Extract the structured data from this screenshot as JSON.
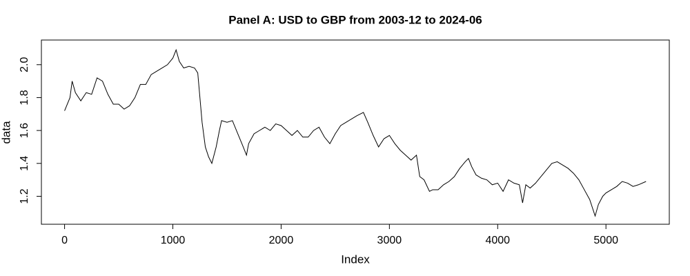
{
  "chart_data": {
    "type": "line",
    "title": "Panel A: USD to GBP from 2003-12 to 2024-06",
    "x_label": "Index",
    "y_label": "data",
    "xlim": [
      -214,
      5585
    ],
    "ylim": [
      1.03,
      2.15
    ],
    "xticks": [
      0,
      1000,
      2000,
      3000,
      4000,
      5000
    ],
    "yticks": [
      1.2,
      1.4,
      1.6,
      1.8,
      {
        "value": 2,
        "label": "2.0"
      }
    ],
    "series": [
      {
        "color": "#000000",
        "x": [
          0,
          50,
          70,
          100,
          150,
          200,
          250,
          300,
          350,
          400,
          450,
          500,
          550,
          600,
          650,
          700,
          750,
          800,
          850,
          900,
          950,
          1000,
          1030,
          1060,
          1100,
          1150,
          1200,
          1230,
          1250,
          1270,
          1300,
          1330,
          1360,
          1400,
          1430,
          1450,
          1500,
          1550,
          1600,
          1650,
          1680,
          1700,
          1750,
          1800,
          1850,
          1900,
          1950,
          2000,
          2050,
          2100,
          2150,
          2200,
          2250,
          2300,
          2350,
          2400,
          2450,
          2500,
          2550,
          2600,
          2650,
          2700,
          2760,
          2800,
          2850,
          2900,
          2950,
          3000,
          3050,
          3100,
          3150,
          3200,
          3250,
          3280,
          3320,
          3370,
          3400,
          3450,
          3500,
          3550,
          3600,
          3650,
          3700,
          3730,
          3760,
          3800,
          3850,
          3900,
          3950,
          4000,
          4050,
          4100,
          4150,
          4200,
          4230,
          4260,
          4300,
          4350,
          4400,
          4450,
          4500,
          4550,
          4600,
          4650,
          4700,
          4750,
          4800,
          4850,
          4900,
          4930,
          4970,
          5000,
          5050,
          5100,
          5150,
          5200,
          5250,
          5300,
          5370
        ],
        "values": [
          1.72,
          1.8,
          1.9,
          1.83,
          1.78,
          1.83,
          1.82,
          1.92,
          1.9,
          1.82,
          1.76,
          1.76,
          1.73,
          1.75,
          1.8,
          1.88,
          1.88,
          1.94,
          1.96,
          1.98,
          2.0,
          2.04,
          2.09,
          2.02,
          1.98,
          1.99,
          1.98,
          1.95,
          1.8,
          1.65,
          1.5,
          1.44,
          1.4,
          1.5,
          1.6,
          1.66,
          1.65,
          1.66,
          1.58,
          1.5,
          1.45,
          1.52,
          1.58,
          1.6,
          1.62,
          1.6,
          1.64,
          1.63,
          1.6,
          1.57,
          1.6,
          1.56,
          1.56,
          1.6,
          1.62,
          1.56,
          1.52,
          1.58,
          1.63,
          1.65,
          1.67,
          1.69,
          1.71,
          1.65,
          1.57,
          1.5,
          1.55,
          1.57,
          1.52,
          1.48,
          1.45,
          1.42,
          1.45,
          1.32,
          1.3,
          1.23,
          1.24,
          1.24,
          1.27,
          1.29,
          1.32,
          1.37,
          1.41,
          1.43,
          1.38,
          1.33,
          1.31,
          1.3,
          1.27,
          1.28,
          1.23,
          1.3,
          1.28,
          1.27,
          1.16,
          1.27,
          1.25,
          1.28,
          1.32,
          1.36,
          1.4,
          1.41,
          1.39,
          1.37,
          1.34,
          1.3,
          1.24,
          1.18,
          1.08,
          1.15,
          1.2,
          1.22,
          1.24,
          1.26,
          1.29,
          1.28,
          1.26,
          1.27,
          1.29
        ]
      }
    ]
  }
}
